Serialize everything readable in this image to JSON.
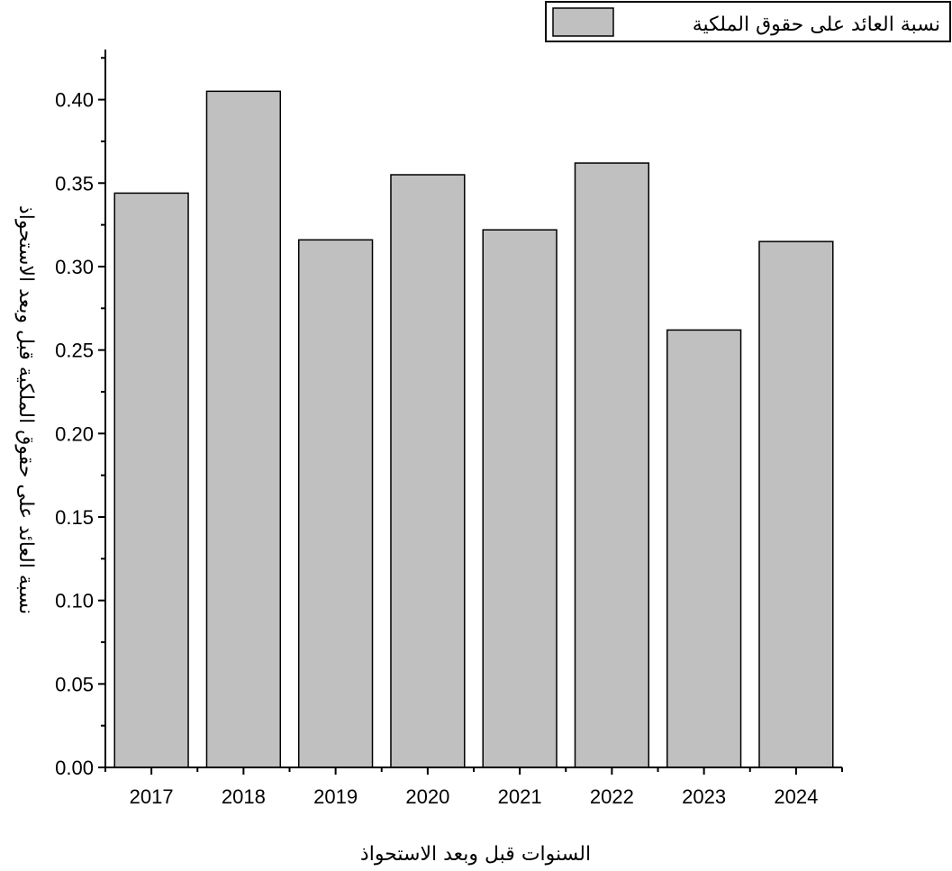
{
  "chart_data": {
    "type": "bar",
    "categories": [
      "2017",
      "2018",
      "2019",
      "2020",
      "2021",
      "2022",
      "2023",
      "2024"
    ],
    "series": [
      {
        "name": "نسبة العائد على حقوق الملكية",
        "values": [
          0.344,
          0.405,
          0.316,
          0.355,
          0.322,
          0.362,
          0.262,
          0.315
        ]
      }
    ],
    "xlabel": "السنوات قبل وبعد الاستحواذ",
    "ylabel": "نسبة العائد على حقوق الملكية قبل وبعد الاستحواذ",
    "ylim": [
      0,
      0.43
    ],
    "yticks": [
      "0.00",
      "0.05",
      "0.10",
      "0.15",
      "0.20",
      "0.25",
      "0.30",
      "0.35",
      "0.40"
    ],
    "legend_position": "top-right",
    "grid": false,
    "bar_color": "#c0c0c0",
    "edge_color": "#000000"
  }
}
